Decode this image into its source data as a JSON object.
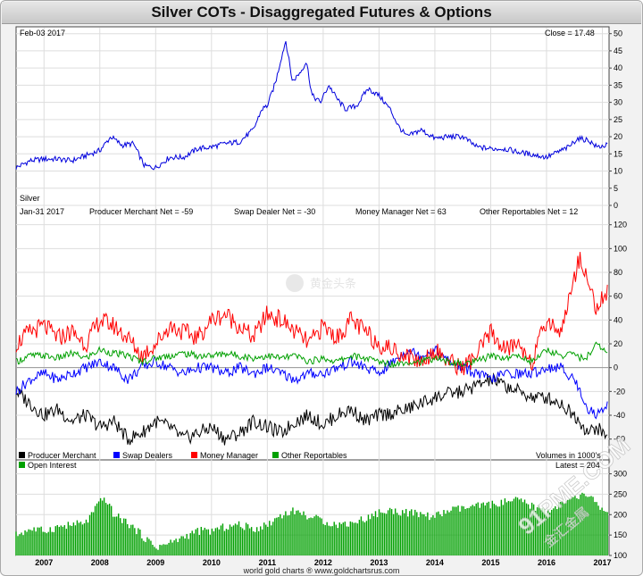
{
  "title": "Silver COTs - Disaggregated Futures & Options",
  "credit": "world gold charts ® www.goldchartsrus.com",
  "watermarks": {
    "toutiao": "黄金头条",
    "site": "91PME.COM",
    "site_cn": "金汇金属"
  },
  "colors": {
    "price": "#0000dd",
    "producer_merchant": "#000000",
    "swap_dealers": "#0000ff",
    "money_manager": "#ff0000",
    "other_reportables": "#00a000",
    "open_interest": "#00a000",
    "grid": "#dddddd",
    "zero_line": "#999999"
  },
  "chart_data": [
    {
      "type": "line",
      "name": "price-panel",
      "date_label": "Feb-03  2017",
      "close_label": "Close = 17.48",
      "series_label": "Silver",
      "ylim": [
        0,
        52
      ],
      "yticks": [
        0,
        5,
        10,
        15,
        20,
        25,
        30,
        35,
        40,
        45,
        50
      ],
      "x": [
        2006.5,
        2006.75,
        2007.0,
        2007.25,
        2007.5,
        2007.75,
        2008.0,
        2008.2,
        2008.4,
        2008.6,
        2008.8,
        2009.0,
        2009.25,
        2009.5,
        2009.75,
        2010.0,
        2010.25,
        2010.5,
        2010.75,
        2010.9,
        2011.0,
        2011.15,
        2011.25,
        2011.33,
        2011.45,
        2011.6,
        2011.7,
        2011.8,
        2011.95,
        2012.1,
        2012.25,
        2012.4,
        2012.6,
        2012.8,
        2013.0,
        2013.2,
        2013.35,
        2013.5,
        2013.75,
        2014.0,
        2014.25,
        2014.5,
        2014.75,
        2015.0,
        2015.25,
        2015.5,
        2015.75,
        2016.0,
        2016.2,
        2016.4,
        2016.55,
        2016.75,
        2016.9,
        2017.09
      ],
      "series": [
        {
          "name": "Silver",
          "values": [
            11,
            13,
            13.5,
            13.5,
            13,
            14.5,
            16,
            20,
            17.5,
            18,
            11.5,
            11,
            14,
            14,
            16.5,
            17,
            18,
            18.5,
            22,
            28,
            29,
            36,
            43,
            48,
            36,
            39,
            42,
            32,
            30,
            35,
            31,
            28,
            29,
            34,
            32,
            28,
            23,
            20,
            22,
            19.5,
            20,
            20,
            17,
            16.5,
            16.5,
            15.5,
            14.8,
            14,
            15.5,
            17,
            19.5,
            19,
            17,
            17.5
          ]
        }
      ],
      "xlim": [
        2006.5,
        2017.12
      ]
    },
    {
      "type": "line",
      "name": "positions-panel",
      "date_label": "Jan-31  2017",
      "header_labels": [
        "Producer Merchant Net = -59",
        "Swap Dealer Net = -30",
        "Money Manager Net = 63",
        "Other Reportables Net = 12"
      ],
      "legend": [
        "Producer Merchant",
        "Swap Dealers",
        "Money Manager",
        "Other Reportables"
      ],
      "volume_label": "Volumes in 1000's",
      "ylim": [
        -70,
        125
      ],
      "yticks": [
        -60,
        -40,
        -20,
        0,
        20,
        40,
        60,
        80,
        100,
        120
      ],
      "x": [
        2006.5,
        2006.75,
        2007.0,
        2007.25,
        2007.5,
        2007.75,
        2008.0,
        2008.25,
        2008.5,
        2008.75,
        2009.0,
        2009.25,
        2009.5,
        2009.75,
        2010.0,
        2010.25,
        2010.5,
        2010.75,
        2011.0,
        2011.25,
        2011.5,
        2011.75,
        2012.0,
        2012.25,
        2012.5,
        2012.75,
        2013.0,
        2013.25,
        2013.5,
        2013.75,
        2014.0,
        2014.25,
        2014.5,
        2014.75,
        2015.0,
        2015.25,
        2015.5,
        2015.75,
        2016.0,
        2016.25,
        2016.5,
        2016.6,
        2016.75,
        2016.9,
        2017.09
      ],
      "series": [
        {
          "name": "Producer Merchant",
          "values": [
            -20,
            -30,
            -40,
            -35,
            -45,
            -40,
            -50,
            -45,
            -60,
            -55,
            -45,
            -50,
            -60,
            -55,
            -50,
            -60,
            -55,
            -45,
            -50,
            -55,
            -45,
            -40,
            -48,
            -40,
            -35,
            -45,
            -40,
            -38,
            -35,
            -30,
            -25,
            -22,
            -20,
            -15,
            -10,
            -15,
            -20,
            -25,
            -25,
            -30,
            -40,
            -45,
            -55,
            -50,
            -59
          ]
        },
        {
          "name": "Swap Dealers",
          "values": [
            -20,
            -10,
            -5,
            -10,
            -5,
            0,
            5,
            0,
            -10,
            0,
            5,
            0,
            -5,
            0,
            0,
            -5,
            0,
            -5,
            0,
            -5,
            -10,
            -5,
            -5,
            0,
            5,
            0,
            -5,
            5,
            15,
            10,
            15,
            5,
            0,
            -5,
            -10,
            -5,
            -5,
            -5,
            0,
            0,
            -10,
            -20,
            -35,
            -40,
            -30
          ]
        },
        {
          "name": "Money Manager",
          "values": [
            20,
            30,
            35,
            25,
            30,
            20,
            40,
            35,
            25,
            10,
            20,
            35,
            30,
            25,
            40,
            45,
            35,
            25,
            45,
            40,
            30,
            20,
            35,
            25,
            40,
            30,
            20,
            15,
            10,
            5,
            15,
            5,
            0,
            10,
            30,
            15,
            20,
            5,
            40,
            30,
            75,
            95,
            70,
            50,
            63
          ]
        },
        {
          "name": "Other Reportables",
          "values": [
            5,
            10,
            10,
            8,
            12,
            8,
            15,
            12,
            10,
            5,
            8,
            10,
            12,
            10,
            10,
            12,
            10,
            8,
            10,
            8,
            10,
            5,
            8,
            5,
            10,
            8,
            5,
            3,
            5,
            5,
            8,
            5,
            3,
            5,
            10,
            8,
            10,
            5,
            15,
            10,
            12,
            8,
            10,
            20,
            12
          ]
        }
      ],
      "xlim": [
        2006.5,
        2017.12
      ]
    },
    {
      "type": "bar",
      "name": "open-interest-panel",
      "legend": [
        "Open Interest"
      ],
      "latest_label": "Latest = 204",
      "ylim": [
        100,
        310
      ],
      "yticks": [
        100,
        150,
        200,
        250,
        300
      ],
      "x": [
        2006.5,
        2006.75,
        2007.0,
        2007.25,
        2007.5,
        2007.75,
        2008.0,
        2008.1,
        2008.25,
        2008.5,
        2008.75,
        2009.0,
        2009.25,
        2009.5,
        2009.75,
        2010.0,
        2010.25,
        2010.5,
        2010.75,
        2011.0,
        2011.25,
        2011.5,
        2011.75,
        2012.0,
        2012.25,
        2012.5,
        2012.75,
        2013.0,
        2013.25,
        2013.5,
        2013.75,
        2014.0,
        2014.25,
        2014.5,
        2014.75,
        2015.0,
        2015.25,
        2015.5,
        2015.75,
        2016.0,
        2016.25,
        2016.5,
        2016.75,
        2016.9,
        2017.09
      ],
      "series": [
        {
          "name": "Open Interest",
          "values": [
            150,
            165,
            160,
            170,
            175,
            180,
            230,
            240,
            200,
            180,
            150,
            120,
            130,
            145,
            160,
            160,
            170,
            175,
            165,
            175,
            200,
            210,
            195,
            185,
            175,
            180,
            190,
            205,
            210,
            205,
            200,
            195,
            210,
            215,
            220,
            225,
            230,
            235,
            220,
            210,
            225,
            240,
            250,
            225,
            204
          ]
        }
      ],
      "xlim": [
        2006.5,
        2017.12
      ]
    }
  ],
  "x_axis": {
    "ticks": [
      2007,
      2008,
      2009,
      2010,
      2011,
      2012,
      2013,
      2014,
      2015,
      2016,
      2017
    ],
    "labels": [
      "2007",
      "2008",
      "2009",
      "2010",
      "2011",
      "2012",
      "2013",
      "2014",
      "2015",
      "2016",
      "2017"
    ]
  }
}
